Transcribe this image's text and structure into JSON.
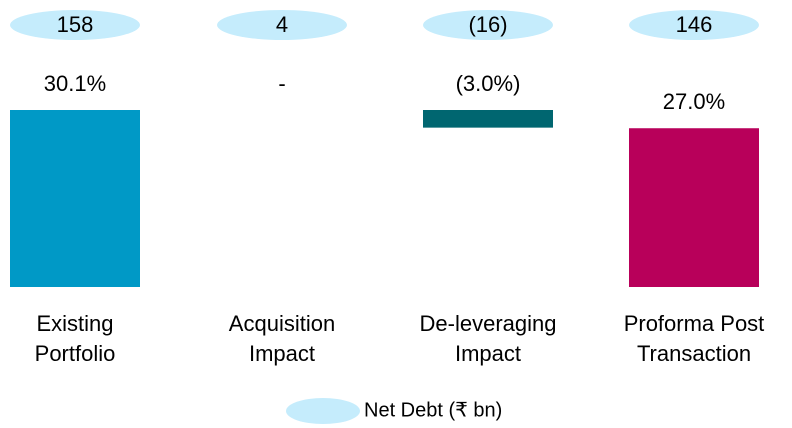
{
  "chart_data": {
    "type": "waterfall",
    "categories": [
      [
        "Existing",
        "Portfolio"
      ],
      [
        "Acquisition",
        "Impact"
      ],
      [
        "De-leveraging",
        "Impact"
      ],
      [
        "Proforma Post",
        "Transaction"
      ]
    ],
    "series": [
      {
        "values": [
          30.1,
          0,
          -3.0,
          27.0
        ],
        "value_labels": [
          "30.1%",
          "-",
          "(3.0%)",
          "27.0%"
        ],
        "colors": [
          "#0099c6",
          "#0099c6",
          "#006670",
          "#b8005a"
        ]
      },
      {
        "name": "Net Debt (₹ bn)",
        "color": "#c5ecfc",
        "values": [
          158,
          4,
          -16,
          146
        ],
        "value_labels": [
          "158",
          "4",
          "(16)",
          "146"
        ]
      }
    ]
  }
}
